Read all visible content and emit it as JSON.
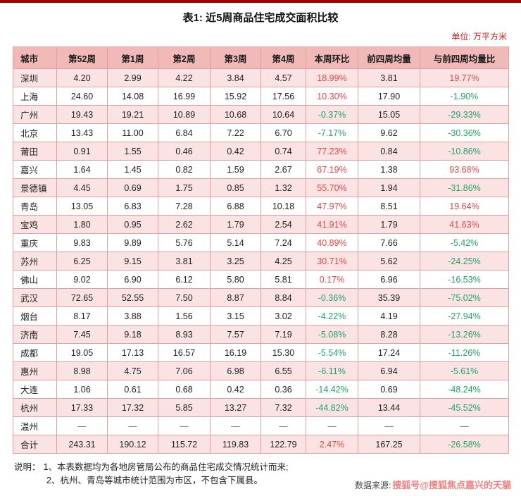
{
  "page": {
    "title": "表1: 近5周商品住宅成交面积比较",
    "unit_label": "单位: 万平方米"
  },
  "table": {
    "columns": [
      "城市",
      "第52周",
      "第1周",
      "第2周",
      "第3周",
      "第4周",
      "本周环比",
      "前四周均量",
      "与前四周均量比"
    ],
    "rows": [
      [
        "深圳",
        "4.20",
        "2.99",
        "4.22",
        "3.84",
        "4.57",
        "18.99%",
        "3.81",
        "19.77%"
      ],
      [
        "上海",
        "24.60",
        "14.08",
        "16.99",
        "15.92",
        "17.56",
        "10.30%",
        "17.90",
        "-1.90%"
      ],
      [
        "广州",
        "19.43",
        "19.21",
        "10.89",
        "10.68",
        "10.64",
        "-0.37%",
        "15.05",
        "-29.33%"
      ],
      [
        "北京",
        "13.43",
        "11.00",
        "6.84",
        "7.22",
        "6.70",
        "-7.17%",
        "9.62",
        "-30.36%"
      ],
      [
        "莆田",
        "0.91",
        "1.55",
        "0.46",
        "0.42",
        "0.74",
        "77.23%",
        "0.84",
        "-10.86%"
      ],
      [
        "嘉兴",
        "1.64",
        "1.45",
        "0.82",
        "1.59",
        "2.67",
        "67.19%",
        "1.38",
        "93.68%"
      ],
      [
        "景德镇",
        "4.45",
        "0.69",
        "1.75",
        "0.85",
        "1.32",
        "55.70%",
        "1.94",
        "-31.86%"
      ],
      [
        "青岛",
        "13.05",
        "6.83",
        "7.28",
        "6.88",
        "10.18",
        "47.97%",
        "8.51",
        "19.64%"
      ],
      [
        "宝鸡",
        "1.80",
        "0.95",
        "2.62",
        "1.79",
        "2.54",
        "41.91%",
        "1.79",
        "41.63%"
      ],
      [
        "重庆",
        "9.83",
        "9.89",
        "5.76",
        "5.14",
        "7.24",
        "40.89%",
        "7.66",
        "-5.42%"
      ],
      [
        "苏州",
        "6.25",
        "9.15",
        "3.81",
        "3.25",
        "4.25",
        "30.71%",
        "5.62",
        "-24.25%"
      ],
      [
        "佛山",
        "9.02",
        "6.90",
        "6.12",
        "5.80",
        "5.81",
        "0.17%",
        "6.96",
        "-16.53%"
      ],
      [
        "武汉",
        "72.65",
        "52.55",
        "7.50",
        "8.87",
        "8.84",
        "-0.36%",
        "35.39",
        "-75.02%"
      ],
      [
        "烟台",
        "8.17",
        "3.88",
        "1.56",
        "3.15",
        "3.02",
        "-4.22%",
        "4.19",
        "-27.94%"
      ],
      [
        "济南",
        "7.45",
        "9.18",
        "8.93",
        "7.57",
        "7.19",
        "-5.08%",
        "8.28",
        "-13.26%"
      ],
      [
        "成都",
        "19.05",
        "17.13",
        "16.57",
        "16.19",
        "15.30",
        "-5.54%",
        "17.24",
        "-11.26%"
      ],
      [
        "惠州",
        "8.98",
        "4.75",
        "7.06",
        "6.98",
        "6.55",
        "-6.11%",
        "6.94",
        "-5.61%"
      ],
      [
        "大连",
        "1.06",
        "0.61",
        "0.68",
        "0.42",
        "0.36",
        "-14.42%",
        "0.69",
        "-48.24%"
      ],
      [
        "杭州",
        "17.33",
        "17.32",
        "5.85",
        "13.27",
        "7.32",
        "-44.82%",
        "13.44",
        "-45.52%"
      ],
      [
        "温州",
        "—",
        "—",
        "—",
        "—",
        "—",
        "—",
        "—",
        "—"
      ],
      [
        "合计",
        "243.31",
        "190.12",
        "115.72",
        "119.83",
        "122.79",
        "2.47%",
        "167.25",
        "-26.58%"
      ]
    ]
  },
  "notes": {
    "label": "说明：",
    "items": [
      "1、本表数据均为各地房管局公布的商品住宅成交情况统计而来;",
      "2、杭州、青岛等城市统计范围为市区，不包含下属县。"
    ]
  },
  "source": {
    "label": "数据来源:",
    "watermark": "搜狐号@搜狐焦点嘉兴的天貓"
  },
  "colors": {
    "positive": "#e64545",
    "negative": "#21a366",
    "header_bg": "#f2b9b9",
    "row_alt_bg": "#fbe3e3",
    "border": "#dfa0a0",
    "top_rule": "#a00000",
    "unit_text": "#cc2222",
    "watermark": "#f08080"
  }
}
